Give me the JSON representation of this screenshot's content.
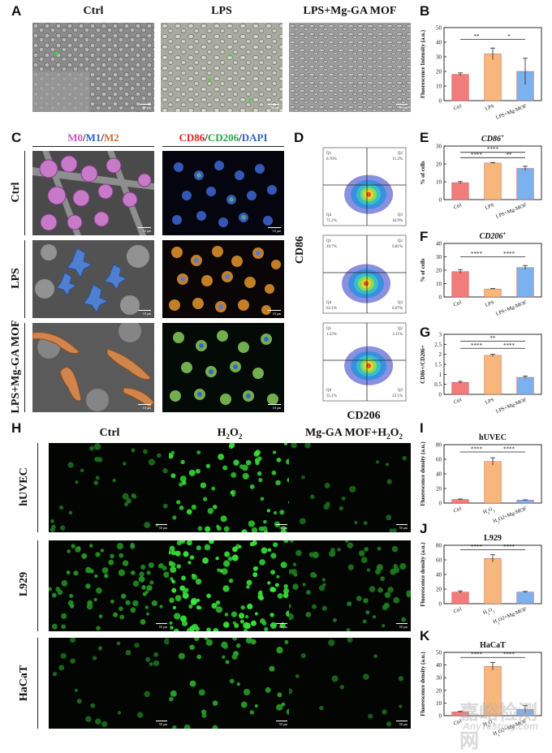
{
  "panels": {
    "A": {
      "label": "A",
      "titles": [
        "Ctrl",
        "LPS",
        "LPS+Mg-GA MOF"
      ],
      "scalebar": "50 μm"
    },
    "B": {
      "label": "B"
    },
    "C": {
      "label": "C",
      "header_sem": {
        "m0": "M0",
        "s1": "/",
        "m1": "M1",
        "s2": "/",
        "m2": "M2"
      },
      "header_if": {
        "cd86": "CD86",
        "s1": "/",
        "cd206": "CD206",
        "s2": "/",
        "dapi": "DAPI"
      },
      "rows": [
        "Ctrl",
        "LPS",
        "LPS+Mg-GA MOF"
      ],
      "scalebar": "10 μm"
    },
    "D": {
      "label": "D",
      "ylabel": "CD86",
      "xlabel": "CD206",
      "plots": [
        {
          "q1": "Q1",
          "v1": "0.70%",
          "q2": "Q2",
          "v2": "11.2%",
          "q3": "Q3",
          "v3": "16.9%",
          "q4": "Q4",
          "v4": "71.2%"
        },
        {
          "q1": "Q1",
          "v1": "20.7%",
          "q2": "Q2",
          "v2": "9.81%",
          "q3": "Q3",
          "v3": "6.07%",
          "q4": "Q4",
          "v4": "63.1%"
        },
        {
          "q1": "Q1",
          "v1": "1.22%",
          "q2": "Q2",
          "v2": "3.11%",
          "q3": "Q3",
          "v3": "23.1%",
          "q4": "Q4",
          "v4": "35.1%"
        }
      ]
    },
    "E": {
      "label": "E"
    },
    "F": {
      "label": "F"
    },
    "G": {
      "label": "G"
    },
    "H": {
      "label": "H",
      "cols": {
        "c1": "Ctrl",
        "c2": "H",
        "c2sub": "2",
        "c2tail": "O",
        "c2sub2": "2",
        "c3": "Mg-GA MOF+H",
        "c3sub": "2",
        "c3tail": "O",
        "c3sub2": "2"
      },
      "rows": [
        "hUVEC",
        "L929",
        "HaCaT"
      ],
      "scalebar": "50 μm"
    },
    "I": {
      "label": "I"
    },
    "J": {
      "label": "J"
    },
    "K": {
      "label": "K"
    }
  },
  "colors": {
    "ctrl": "#f07c7c",
    "lps": "#f7b77c",
    "mof": "#7cb1ef",
    "green": "#3cd63c"
  },
  "chart_data": [
    {
      "id": "B",
      "type": "bar",
      "title": "",
      "ylabel": "Fluorescence Intensity (a.u.)",
      "categories": [
        "Ctrl",
        "LPS",
        "LPS+Mg-MOF"
      ],
      "values": [
        18,
        32,
        20
      ],
      "errors": [
        1,
        4,
        9
      ],
      "ylim": [
        0,
        50
      ],
      "yticks": [
        0,
        10,
        20,
        30,
        40,
        50
      ],
      "sig": [
        {
          "from": 0,
          "to": 1,
          "text": "**",
          "y": 42
        },
        {
          "from": 1,
          "to": 2,
          "text": "*",
          "y": 42
        }
      ]
    },
    {
      "id": "E",
      "type": "bar",
      "title": "CD86+",
      "title_main": "CD86",
      "title_sup": "+",
      "ylabel": "% of cells",
      "categories": [
        "Ctrl",
        "LPS",
        "LPS+Mg-MOF"
      ],
      "values": [
        9.5,
        20.5,
        17.5
      ],
      "errors": [
        0.6,
        0.3,
        1.2
      ],
      "ylim": [
        0,
        30
      ],
      "yticks": [
        0,
        10,
        20,
        30
      ],
      "sig": [
        {
          "from": 0,
          "to": 2,
          "text": "****",
          "y": 26.5
        },
        {
          "from": 0,
          "to": 1,
          "text": "****",
          "y": 23.5
        },
        {
          "from": 1,
          "to": 2,
          "text": "**",
          "y": 23.5
        }
      ]
    },
    {
      "id": "F",
      "type": "bar",
      "title": "CD206+",
      "title_main": "CD206",
      "title_sup": "+",
      "ylabel": "% of cells",
      "categories": [
        "Ctrl",
        "LPS",
        "LPS+Mg-MOF"
      ],
      "values": [
        19,
        6,
        22
      ],
      "errors": [
        1.5,
        0.3,
        1.5
      ],
      "ylim": [
        0,
        40
      ],
      "yticks": [
        0,
        10,
        20,
        30,
        40
      ],
      "sig": [
        {
          "from": 0,
          "to": 1,
          "text": "****",
          "y": 30
        },
        {
          "from": 1,
          "to": 2,
          "text": "****",
          "y": 30
        }
      ]
    },
    {
      "id": "G",
      "type": "bar",
      "title": "",
      "ylabel": "CD86+/CD206+",
      "categories": [
        "Ctrl",
        "LPS",
        "LPS+Mg-MOF"
      ],
      "values": [
        0.6,
        1.95,
        0.85
      ],
      "errors": [
        0.05,
        0.05,
        0.06
      ],
      "ylim": [
        0,
        3.0
      ],
      "yticks": [
        0,
        0.5,
        1.0,
        1.5,
        2.0,
        2.5,
        3.0
      ],
      "sig": [
        {
          "from": 0,
          "to": 2,
          "text": "**",
          "y": 2.65
        },
        {
          "from": 0,
          "to": 1,
          "text": "****",
          "y": 2.3
        },
        {
          "from": 1,
          "to": 2,
          "text": "****",
          "y": 2.3
        }
      ]
    },
    {
      "id": "I",
      "type": "bar",
      "title": "hUVEC",
      "ylabel": "Fluorescence density (a.u.)",
      "categories": [
        "Ctrl",
        "H2O2",
        "H2O2+Mg-MOF"
      ],
      "values": [
        5,
        57,
        4
      ],
      "errors": [
        0.6,
        5,
        0.5
      ],
      "ylim": [
        0,
        80
      ],
      "yticks": [
        0,
        20,
        40,
        60,
        80
      ],
      "sig": [
        {
          "from": 0,
          "to": 1,
          "text": "****",
          "y": 70
        },
        {
          "from": 1,
          "to": 2,
          "text": "****",
          "y": 70
        }
      ]
    },
    {
      "id": "J",
      "type": "bar",
      "title": "L929",
      "ylabel": "Fluorescence density (a.u.)",
      "categories": [
        "Ctrl",
        "H2O2",
        "H2O2+Mg-MOF"
      ],
      "values": [
        16,
        62,
        16
      ],
      "errors": [
        1.5,
        5,
        0.8
      ],
      "ylim": [
        0,
        80
      ],
      "yticks": [
        0,
        20,
        40,
        60,
        80
      ],
      "sig": [
        {
          "from": 0,
          "to": 1,
          "text": "****",
          "y": 74
        },
        {
          "from": 1,
          "to": 2,
          "text": "****",
          "y": 74
        }
      ]
    },
    {
      "id": "K",
      "type": "bar",
      "title": "HaCaT",
      "ylabel": "Fluorescence density (a.u.)",
      "categories": [
        "Ctrl",
        "H2O2",
        "H2O2+Mg-MOF"
      ],
      "values": [
        3,
        39,
        5
      ],
      "errors": [
        0.4,
        3,
        3
      ],
      "ylim": [
        0,
        50
      ],
      "yticks": [
        0,
        10,
        20,
        30,
        40,
        50
      ],
      "sig": [
        {
          "from": 0,
          "to": 1,
          "text": "****",
          "y": 46
        },
        {
          "from": 1,
          "to": 2,
          "text": "****",
          "y": 46
        }
      ]
    }
  ],
  "watermark": {
    "cn": "嘉峪检测网",
    "en": "AnyTesting.com"
  }
}
